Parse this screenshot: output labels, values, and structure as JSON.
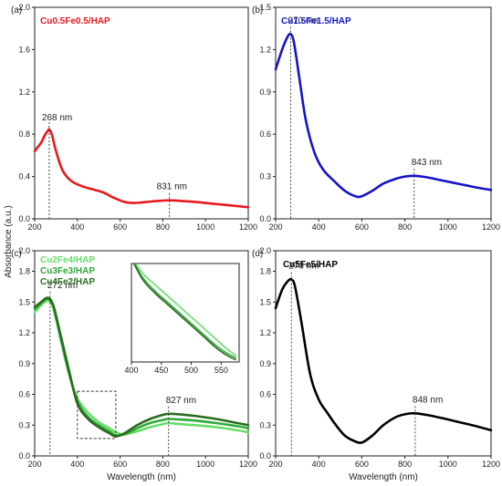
{
  "figure": {
    "ylabel": "Absorbance (a.u.)",
    "xlabel": "Wavelength (nm)"
  },
  "chart_data": [
    {
      "type": "line",
      "panel": "(a)",
      "xlim": [
        200,
        1200
      ],
      "ylim": [
        0,
        2.0
      ],
      "xticks": [
        200,
        400,
        600,
        800,
        1000,
        1200
      ],
      "yticks": [
        0.0,
        0.4,
        0.8,
        1.2,
        1.6,
        2.0
      ],
      "ytick_labels": [
        "0.0",
        "0.4",
        "0.8",
        "1.2",
        "1.6",
        "2.0"
      ],
      "xlabel": "",
      "series": [
        {
          "name": "Cu0.5Fe0.5/HAP",
          "color": "#e8191f",
          "x": [
            200,
            230,
            250,
            265,
            268,
            280,
            300,
            330,
            370,
            420,
            470,
            520,
            570,
            620,
            660,
            700,
            750,
            800,
            831,
            880,
            950,
            1050,
            1150,
            1200
          ],
          "y": [
            0.64,
            0.72,
            0.8,
            0.84,
            0.845,
            0.8,
            0.64,
            0.46,
            0.36,
            0.31,
            0.28,
            0.25,
            0.2,
            0.16,
            0.15,
            0.155,
            0.165,
            0.172,
            0.175,
            0.17,
            0.16,
            0.14,
            0.12,
            0.11
          ]
        }
      ],
      "annotations": [
        {
          "text": "268 nm",
          "x": 268,
          "y": 0.845
        },
        {
          "text": "831 nm",
          "x": 831,
          "y": 0.175
        }
      ]
    },
    {
      "type": "line",
      "panel": "(b)",
      "xlim": [
        200,
        1200
      ],
      "ylim": [
        0,
        1.5
      ],
      "xticks": [
        200,
        400,
        600,
        800,
        1000,
        1200
      ],
      "yticks": [
        0.0,
        0.3,
        0.6,
        0.9,
        1.2,
        1.5
      ],
      "ytick_labels": [
        "0.0",
        "0.3",
        "0.6",
        "0.9",
        "1.2",
        "1.5"
      ],
      "xlabel": "",
      "series": [
        {
          "name": "Cu1.5Fe1.5/HAP",
          "color": "#1414c8",
          "x": [
            200,
            230,
            255,
            270,
            285,
            310,
            340,
            380,
            420,
            470,
            520,
            570,
            600,
            650,
            700,
            760,
            800,
            843,
            900,
            980,
            1060,
            1140,
            1200
          ],
          "y": [
            1.06,
            1.2,
            1.29,
            1.31,
            1.25,
            1.0,
            0.7,
            0.47,
            0.35,
            0.27,
            0.2,
            0.16,
            0.16,
            0.2,
            0.25,
            0.285,
            0.3,
            0.305,
            0.295,
            0.27,
            0.245,
            0.22,
            0.205
          ]
        }
      ],
      "annotations": [
        {
          "text": "270 nm",
          "x": 270,
          "y": 1.31
        },
        {
          "text": "843 nm",
          "x": 843,
          "y": 0.305
        }
      ]
    },
    {
      "type": "line",
      "panel": "(c)",
      "xlim": [
        200,
        1200
      ],
      "ylim": [
        0,
        2.0
      ],
      "xticks": [
        200,
        400,
        600,
        800,
        1000,
        1200
      ],
      "yticks": [
        0.0,
        0.3,
        0.6,
        0.9,
        1.2,
        1.5,
        1.8,
        2.0
      ],
      "ytick_labels": [
        "0.0",
        "0.3",
        "0.6",
        "0.9",
        "1.2",
        "1.5",
        "1.8",
        "2.0"
      ],
      "xlabel": "Wavelength (nm)",
      "series": [
        {
          "name": "Cu2Fe4/HAP",
          "color": "#66dd66",
          "x": [
            200,
            230,
            255,
            272,
            290,
            320,
            360,
            400,
            450,
            500,
            550,
            580,
            620,
            680,
            740,
            800,
            827,
            880,
            950,
            1050,
            1150,
            1200
          ],
          "y": [
            1.4,
            1.47,
            1.51,
            1.5,
            1.42,
            1.15,
            0.8,
            0.56,
            0.42,
            0.33,
            0.27,
            0.23,
            0.21,
            0.24,
            0.28,
            0.31,
            0.32,
            0.31,
            0.3,
            0.28,
            0.25,
            0.23
          ]
        },
        {
          "name": "Cu3Fe3/HAP",
          "color": "#2eaa3a",
          "x": [
            200,
            230,
            255,
            272,
            290,
            320,
            360,
            400,
            450,
            500,
            550,
            580,
            620,
            680,
            740,
            800,
            827,
            880,
            950,
            1050,
            1150,
            1200
          ],
          "y": [
            1.43,
            1.49,
            1.53,
            1.52,
            1.44,
            1.17,
            0.82,
            0.53,
            0.38,
            0.3,
            0.24,
            0.2,
            0.21,
            0.27,
            0.32,
            0.35,
            0.36,
            0.355,
            0.345,
            0.32,
            0.29,
            0.27
          ]
        },
        {
          "name": "Cu4Fe2/HAP",
          "color": "#2a6d1e",
          "x": [
            200,
            230,
            255,
            272,
            290,
            320,
            360,
            400,
            450,
            500,
            550,
            580,
            620,
            680,
            740,
            800,
            827,
            880,
            950,
            1050,
            1150,
            1200
          ],
          "y": [
            1.45,
            1.5,
            1.54,
            1.53,
            1.45,
            1.19,
            0.84,
            0.51,
            0.36,
            0.28,
            0.22,
            0.19,
            0.22,
            0.3,
            0.36,
            0.4,
            0.41,
            0.405,
            0.39,
            0.36,
            0.32,
            0.3
          ]
        }
      ],
      "annotations": [
        {
          "text": "272 nm",
          "x": 272,
          "y": 1.53
        },
        {
          "text": "827 nm",
          "x": 827,
          "y": 0.41
        }
      ],
      "zoom_box": {
        "x": [
          400,
          580
        ],
        "y": [
          0.17,
          0.63
        ]
      }
    },
    {
      "type": "line",
      "panel": "inset",
      "xlim": [
        400,
        580
      ],
      "ylim": [
        0.17,
        0.63
      ],
      "xticks": [
        400,
        450,
        500,
        550
      ],
      "yticks": [],
      "ytick_labels": [],
      "xlabel": "",
      "series": [
        {
          "name": "Cu2Fe4/HAP",
          "color": "#66dd66",
          "x": [
            407,
            420,
            440,
            460,
            480,
            500,
            520,
            540,
            560,
            575
          ],
          "y": [
            0.63,
            0.58,
            0.53,
            0.48,
            0.43,
            0.38,
            0.33,
            0.28,
            0.23,
            0.2
          ]
        },
        {
          "name": "Cu3Fe3/HAP",
          "color": "#2eaa3a",
          "x": [
            405,
            420,
            440,
            460,
            480,
            500,
            520,
            540,
            560,
            575
          ],
          "y": [
            0.63,
            0.56,
            0.5,
            0.45,
            0.4,
            0.35,
            0.3,
            0.25,
            0.21,
            0.19
          ]
        },
        {
          "name": "Cu4Fe2/HAP",
          "color": "#2a6d1e",
          "x": [
            404,
            420,
            440,
            460,
            480,
            500,
            520,
            540,
            560,
            575
          ],
          "y": [
            0.63,
            0.55,
            0.49,
            0.44,
            0.39,
            0.34,
            0.29,
            0.24,
            0.2,
            0.18
          ]
        }
      ],
      "annotations": []
    },
    {
      "type": "line",
      "panel": "(d)",
      "xlim": [
        200,
        1200
      ],
      "ylim": [
        0,
        2.0
      ],
      "xticks": [
        200,
        400,
        600,
        800,
        1000,
        1200
      ],
      "yticks": [
        0.0,
        0.3,
        0.6,
        0.9,
        1.2,
        1.5,
        1.8,
        2.0
      ],
      "ytick_labels": [
        "0.0",
        "0.3",
        "0.6",
        "0.9",
        "1.2",
        "1.5",
        "1.8",
        "2.0"
      ],
      "xlabel": "Wavelength (nm)",
      "series": [
        {
          "name": "Cu5Fe5/HAP",
          "color": "#000000",
          "x": [
            200,
            230,
            255,
            273,
            290,
            320,
            360,
            400,
            440,
            480,
            520,
            560,
            600,
            650,
            700,
            760,
            810,
            848,
            900,
            970,
            1050,
            1130,
            1200
          ],
          "y": [
            1.44,
            1.62,
            1.7,
            1.72,
            1.65,
            1.3,
            0.8,
            0.55,
            0.42,
            0.3,
            0.2,
            0.15,
            0.13,
            0.2,
            0.3,
            0.38,
            0.41,
            0.415,
            0.4,
            0.37,
            0.33,
            0.29,
            0.25
          ]
        }
      ],
      "annotations": [
        {
          "text": "273 nm",
          "x": 273,
          "y": 1.72
        },
        {
          "text": "848 nm",
          "x": 848,
          "y": 0.415
        }
      ]
    }
  ]
}
